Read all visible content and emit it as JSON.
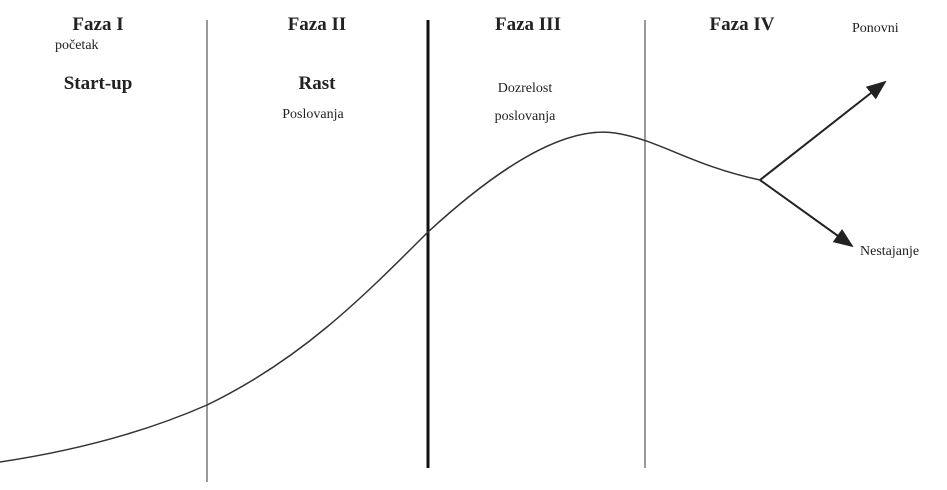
{
  "phases": [
    {
      "title": "Faza I",
      "lines": [
        "početak",
        "Start-up"
      ]
    },
    {
      "title": "Faza II",
      "lines": [
        "Rast",
        "Poslovanja"
      ]
    },
    {
      "title": "Faza III",
      "lines": [
        "Dozrelost",
        "poslovanja"
      ]
    },
    {
      "title": "Faza IV",
      "lines": []
    }
  ],
  "outcomes": {
    "up": "Ponovni",
    "down": "Nestajanje"
  }
}
